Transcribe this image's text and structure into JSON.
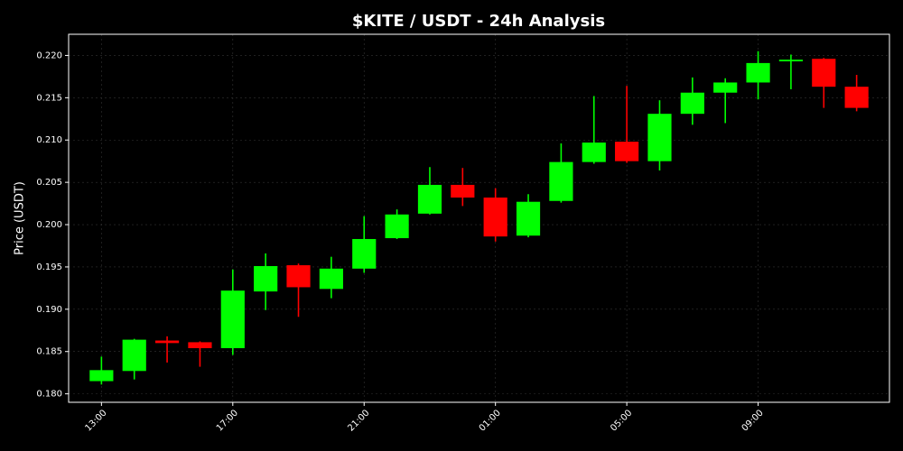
{
  "chart_data": {
    "type": "candlestick",
    "title": "$KITE / USDT - 24h Analysis",
    "y_label": "Price (USDT)",
    "categories": [
      "13:00",
      null,
      null,
      null,
      "17:00",
      null,
      null,
      null,
      "21:00",
      null,
      null,
      null,
      "01:00",
      null,
      null,
      null,
      "05:00",
      null,
      null,
      null,
      "09:00",
      null,
      null,
      null
    ],
    "open": [
      0.1815,
      0.1827,
      0.1863,
      0.1861,
      0.1854,
      0.1921,
      0.1952,
      0.1924,
      0.1948,
      0.1984,
      0.2013,
      0.2047,
      0.2032,
      0.1987,
      0.2028,
      0.2074,
      0.2098,
      0.2075,
      0.2131,
      0.2156,
      0.2168,
      0.2193,
      0.2196,
      0.2163
    ],
    "high": [
      0.1844,
      0.1865,
      0.1868,
      0.1862,
      0.1947,
      0.1966,
      0.1954,
      0.1962,
      0.201,
      0.2018,
      0.2068,
      0.2067,
      0.2043,
      0.2036,
      0.2096,
      0.2152,
      0.2164,
      0.2147,
      0.2174,
      0.2173,
      0.2205,
      0.2201,
      0.2197,
      0.2177
    ],
    "low": [
      0.1811,
      0.1817,
      0.1837,
      0.1832,
      0.1846,
      0.1899,
      0.1891,
      0.1913,
      0.1943,
      0.1983,
      0.2012,
      0.2022,
      0.198,
      0.1985,
      0.2026,
      0.2072,
      0.2073,
      0.2064,
      0.2118,
      0.212,
      0.2148,
      0.216,
      0.2138,
      0.2134
    ],
    "close": [
      0.1828,
      0.1864,
      0.186,
      0.1854,
      0.1922,
      0.1951,
      0.1926,
      0.1948,
      0.1983,
      0.2012,
      0.2047,
      0.2032,
      0.1986,
      0.2027,
      0.2074,
      0.2097,
      0.2075,
      0.2131,
      0.2156,
      0.2168,
      0.2191,
      0.2195,
      0.2163,
      0.2138
    ],
    "up_color": "#00ff00",
    "down_color": "#ff0000",
    "ylim": [
      0.179,
      0.2225
    ],
    "yticks": [
      {
        "value": 0.18,
        "label": "0.180"
      },
      0.185,
      {
        "value": 0.19,
        "label": "0.190"
      },
      0.195,
      {
        "value": 0.2,
        "label": "0.200"
      },
      0.205,
      {
        "value": 0.21,
        "label": "0.210"
      },
      0.215,
      {
        "value": 0.22,
        "label": "0.220"
      }
    ],
    "grid": true
  }
}
